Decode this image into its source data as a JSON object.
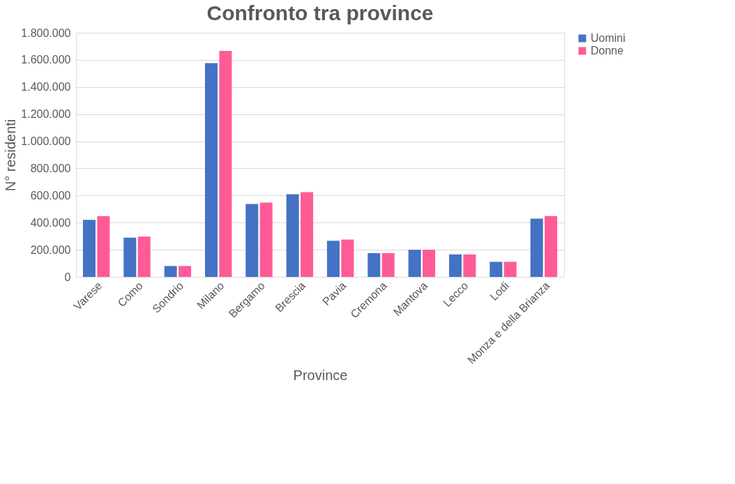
{
  "chart_data": {
    "type": "bar",
    "title": "Confronto tra province",
    "xlabel": "Province",
    "ylabel": "N° residenti",
    "categories": [
      "Varese",
      "Como",
      "Sondrio",
      "Milano",
      "Bergamo",
      "Brescia",
      "Pavia",
      "Cremona",
      "Mantova",
      "Lecco",
      "Lodi",
      "Monza e della Brianza"
    ],
    "series": [
      {
        "name": "Uomini",
        "color": "#4472c4",
        "values": [
          420000,
          289000,
          80000,
          1576000,
          537000,
          610000,
          266000,
          175000,
          200000,
          166000,
          111000,
          430000
        ]
      },
      {
        "name": "Donne",
        "color": "#ff5b96",
        "values": [
          448000,
          297000,
          80000,
          1666000,
          548000,
          625000,
          275000,
          175000,
          200000,
          166000,
          111000,
          449000
        ]
      }
    ],
    "ylim": [
      0,
      1800000
    ],
    "yticks": [
      0,
      {
        "value": 200000,
        "label": "200.000"
      },
      {
        "value": 400000,
        "label": "400.000"
      },
      {
        "value": 600000,
        "label": "600.000"
      },
      {
        "value": 800000,
        "label": "800.000"
      },
      {
        "value": 1000000,
        "label": "1.000.000"
      },
      {
        "value": 1200000,
        "label": "1.200.000"
      },
      {
        "value": 1400000,
        "label": "1.400.000"
      },
      {
        "value": 1600000,
        "label": "1.600.000"
      },
      {
        "value": 1800000,
        "label": "1.800.000"
      }
    ],
    "grid": "y",
    "legend": "right"
  }
}
